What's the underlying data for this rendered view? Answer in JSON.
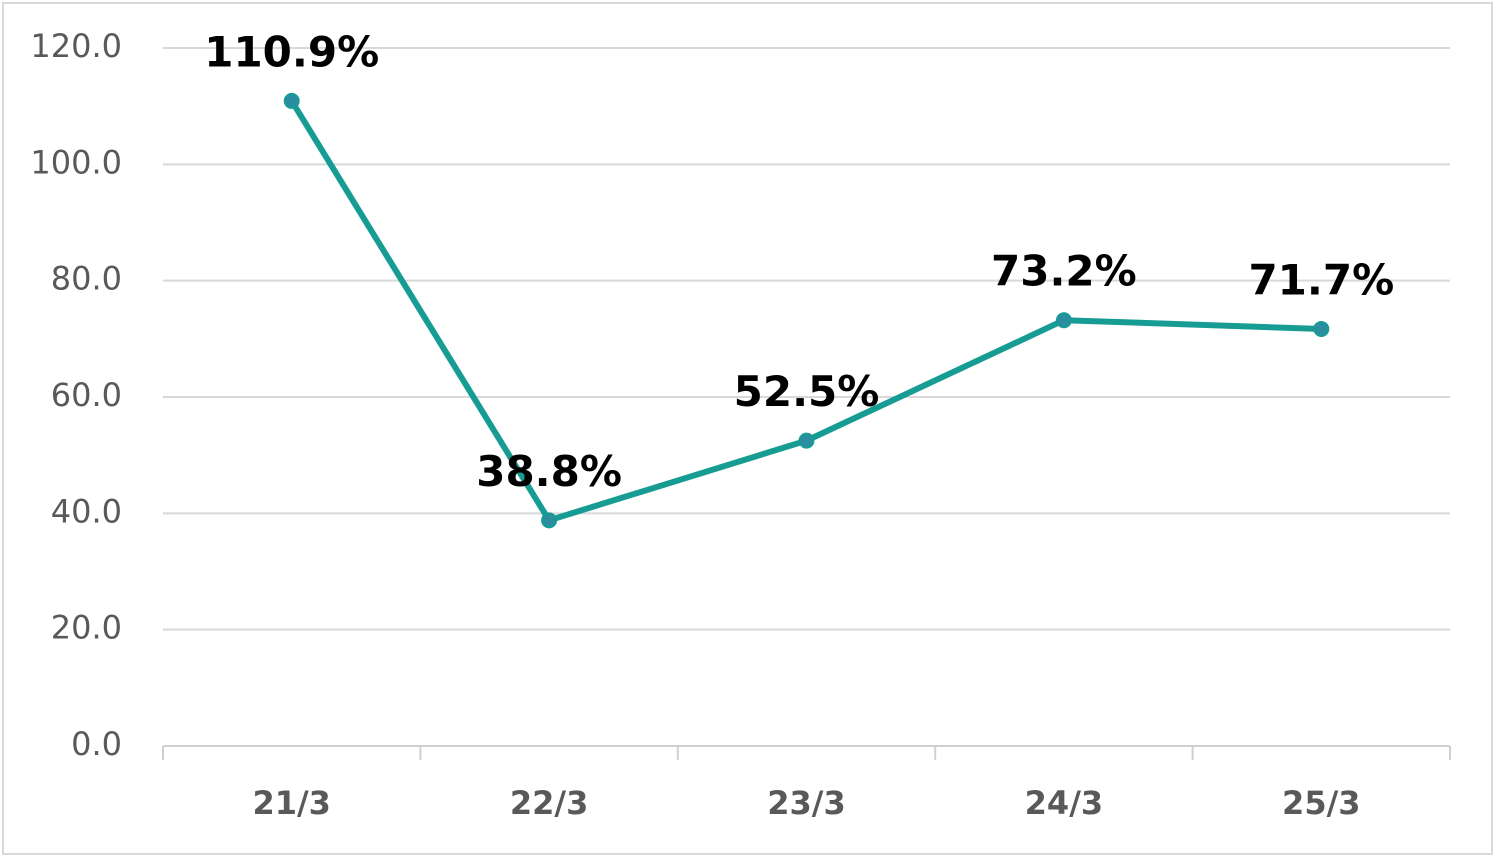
{
  "chart_data": {
    "type": "line",
    "categories": [
      "21/3",
      "22/3",
      "23/3",
      "24/3",
      "25/3"
    ],
    "series": [
      {
        "color": "#179c94",
        "marker_color": "#2a8da0",
        "values": [
          110.9,
          38.8,
          52.5,
          73.2,
          71.7
        ],
        "value_labels": [
          "110.9%",
          "38.8%",
          "52.5%",
          "73.2%",
          "71.7%"
        ]
      }
    ],
    "ylim": [
      0,
      120
    ],
    "yticks": [
      {
        "value": 0,
        "label": "0.0"
      },
      {
        "value": 20,
        "label": "20.0"
      },
      {
        "value": 40,
        "label": "40.0"
      },
      {
        "value": 60,
        "label": "60.0"
      },
      {
        "value": 80,
        "label": "80.0"
      },
      {
        "value": 100,
        "label": "100.0"
      },
      {
        "value": 120,
        "label": "120.0"
      }
    ],
    "grid": true
  }
}
